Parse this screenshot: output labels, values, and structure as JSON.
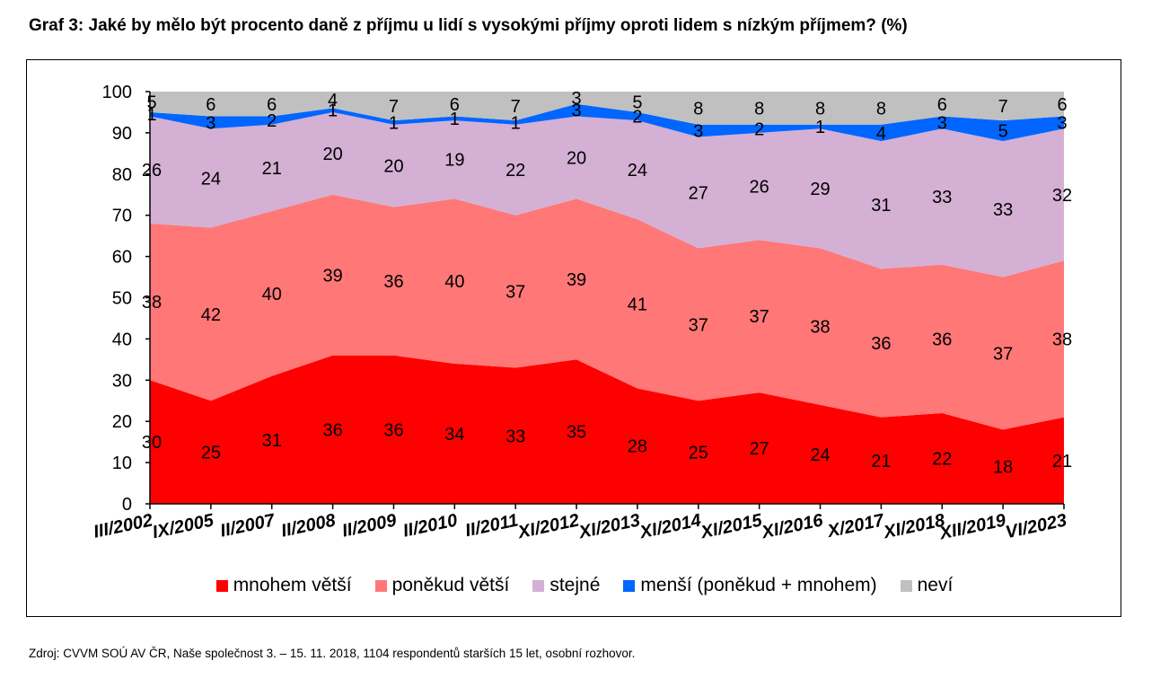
{
  "title": "Graf 3: Jaké by mělo být procento daně z příjmu u lidí s vysokými příjmy oproti lidem s nízkým příjmem? (%)",
  "source": "Zdroj: CVVM SOÚ AV ČR, Naše společnost 3. – 15. 11. 2018, 1104 respondentů starších 15 let, osobní rozhovor.",
  "chart_data": {
    "type": "area",
    "stacked": true,
    "ylim": [
      0,
      100
    ],
    "yticks": [
      0,
      10,
      20,
      30,
      40,
      50,
      60,
      70,
      80,
      90,
      100
    ],
    "categories": [
      "III/2002",
      "IX/2005",
      "II/2007",
      "II/2008",
      "II/2009",
      "II/2010",
      "II/2011",
      "XI/2012",
      "XI/2013",
      "XI/2014",
      "XI/2015",
      "XI/2016",
      "X/2017",
      "XI/2018",
      "XII/2019",
      "VI/2023"
    ],
    "series": [
      {
        "name": "mnohem větší",
        "color": "#ff0000",
        "values": [
          30,
          25,
          31,
          36,
          36,
          34,
          33,
          35,
          28,
          25,
          27,
          24,
          21,
          22,
          18,
          21
        ]
      },
      {
        "name": "poněkud větší",
        "color": "#ff7777",
        "values": [
          38,
          42,
          40,
          39,
          36,
          40,
          37,
          39,
          41,
          37,
          37,
          38,
          36,
          36,
          37,
          38
        ]
      },
      {
        "name": "stejné",
        "color": "#d4b0d4",
        "values": [
          26,
          24,
          21,
          20,
          20,
          19,
          22,
          20,
          24,
          27,
          26,
          29,
          31,
          33,
          33,
          32
        ]
      },
      {
        "name": "menší (poněkud + mnohem)",
        "color": "#0066ff",
        "values": [
          1,
          3,
          2,
          1,
          1,
          1,
          1,
          3,
          2,
          3,
          2,
          1,
          4,
          3,
          5,
          3
        ]
      },
      {
        "name": "neví",
        "color": "#c0c0c0",
        "values": [
          5,
          6,
          6,
          4,
          7,
          6,
          7,
          3,
          5,
          8,
          8,
          8,
          8,
          6,
          7,
          6
        ]
      }
    ],
    "legend": "bottom"
  }
}
